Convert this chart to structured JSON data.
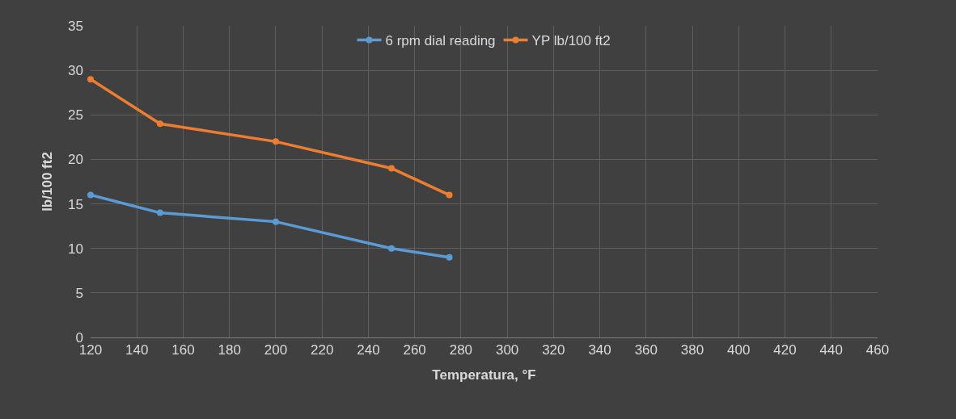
{
  "chart_data": {
    "type": "line",
    "xlabel": "Temperatura, °F",
    "ylabel": "lb/100 ft2",
    "x": [
      120,
      150,
      200,
      250,
      275
    ],
    "series": [
      {
        "name": "6 rpm dial reading",
        "color": "#5b9bd5",
        "values": [
          16,
          14,
          13,
          10,
          9
        ]
      },
      {
        "name": "YP lb/100 ft2",
        "color": "#ed7d31",
        "values": [
          29,
          24,
          22,
          19,
          16
        ]
      }
    ],
    "xlim": [
      120,
      460
    ],
    "xticks": [
      120,
      140,
      160,
      180,
      200,
      220,
      240,
      260,
      280,
      300,
      320,
      340,
      360,
      380,
      400,
      420,
      440,
      460
    ],
    "ylim": [
      0,
      35
    ],
    "yticks": [
      0,
      5,
      10,
      15,
      20,
      25,
      30,
      35
    ],
    "grid": true,
    "legend": "top",
    "marker": "circle",
    "line_style": "solid"
  }
}
